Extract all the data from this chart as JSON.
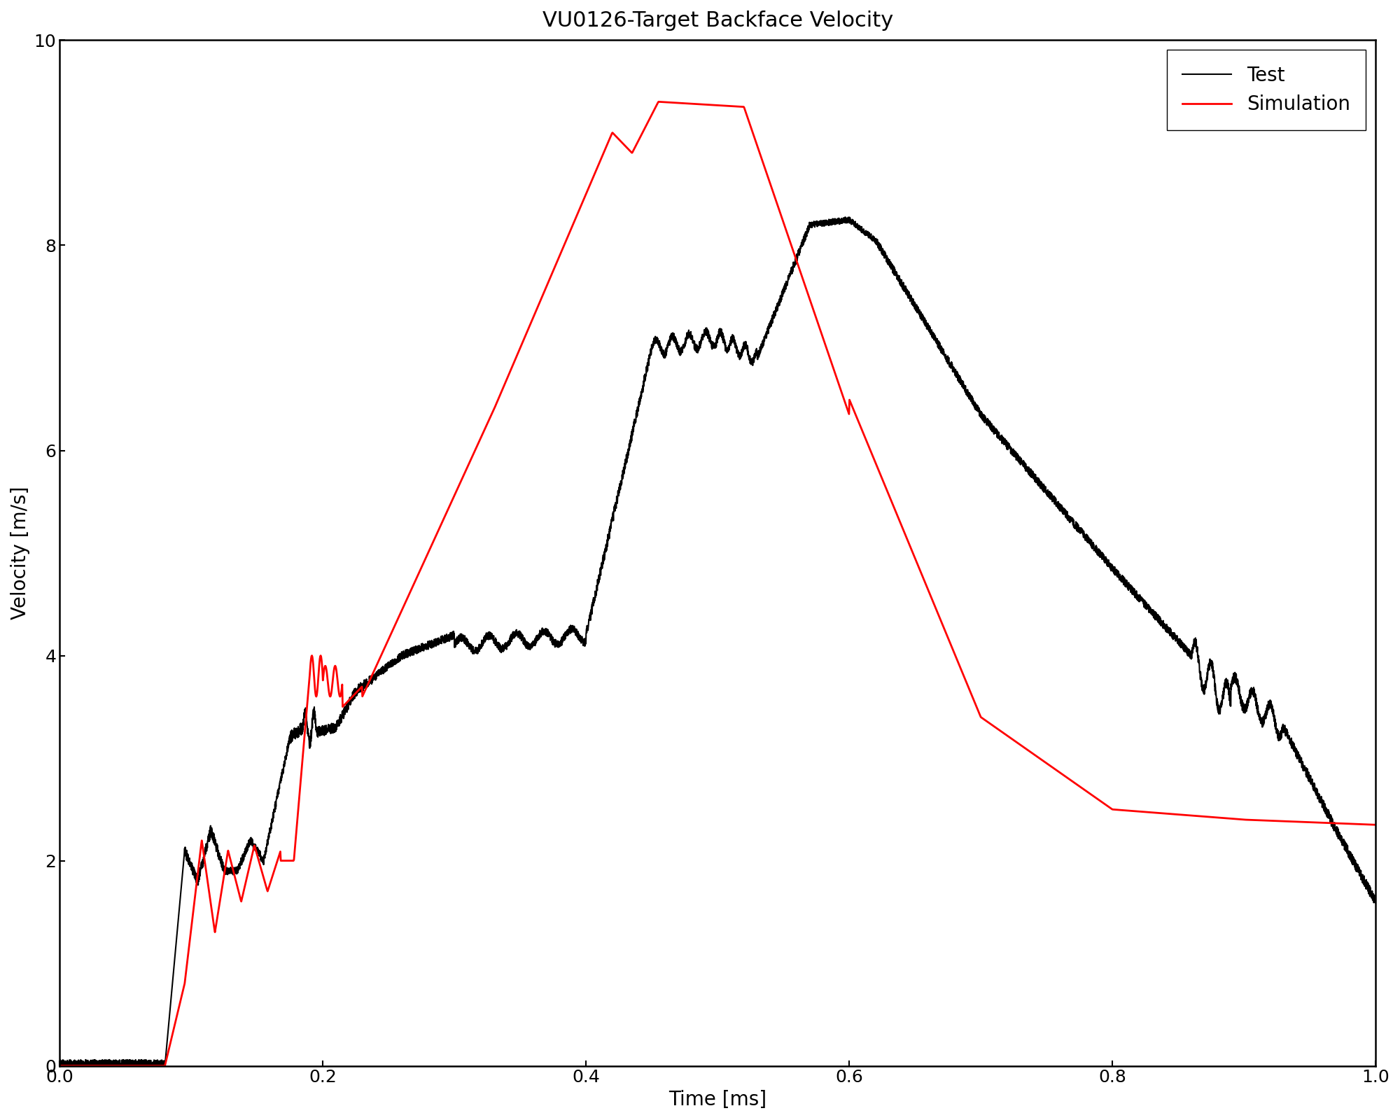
{
  "title": "VU0126-Target Backface Velocity",
  "xlabel": "Time [ms]",
  "ylabel": "Velocity [m/s]",
  "xlim": [
    0,
    1
  ],
  "ylim": [
    0,
    10
  ],
  "xticks": [
    0,
    0.2,
    0.4,
    0.6,
    0.8,
    1.0
  ],
  "yticks": [
    0,
    2,
    4,
    6,
    8,
    10
  ],
  "test_color": "#000000",
  "sim_color": "#ff0000",
  "test_lw": 1.5,
  "sim_lw": 2.0,
  "title_fontsize": 22,
  "label_fontsize": 20,
  "tick_fontsize": 18,
  "legend_fontsize": 20,
  "background_color": "#ffffff",
  "figsize": [
    20,
    16
  ],
  "dpi": 100
}
